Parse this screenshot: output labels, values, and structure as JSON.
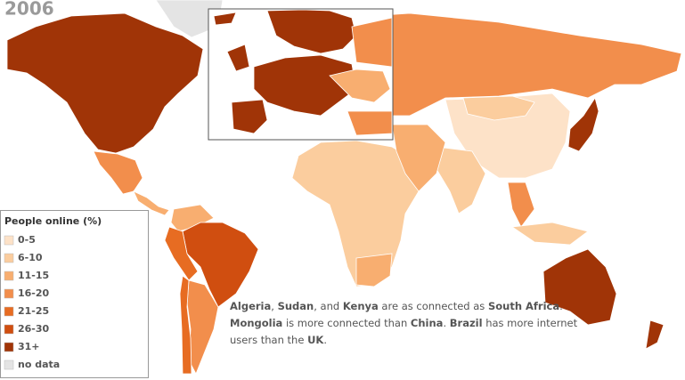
{
  "header": {
    "title": "2006"
  },
  "legend": {
    "title": "People online (%)",
    "items": [
      {
        "label": "0-5",
        "color": "#fde2c8"
      },
      {
        "label": "6-10",
        "color": "#fbcd9e"
      },
      {
        "label": "11-15",
        "color": "#f8ae70"
      },
      {
        "label": "16-20",
        "color": "#f28e4c"
      },
      {
        "label": "21-25",
        "color": "#e76c22"
      },
      {
        "label": "26-30",
        "color": "#d04e10"
      },
      {
        "label": "31+",
        "color": "#a03407"
      },
      {
        "label": "no data",
        "color": "#e4e4e4"
      }
    ]
  },
  "annotation": {
    "lines": [
      [
        {
          "text": "Algeria",
          "bold": true
        },
        {
          "text": ", ",
          "bold": false
        },
        {
          "text": "Sudan",
          "bold": true
        },
        {
          "text": ", and ",
          "bold": false
        },
        {
          "text": "Kenya",
          "bold": true
        },
        {
          "text": " are as connected as ",
          "bold": false
        },
        {
          "text": "South Africa",
          "bold": true
        },
        {
          "text": ".",
          "bold": false
        }
      ],
      [
        {
          "text": "Mongolia",
          "bold": true
        },
        {
          "text": " is more connected than ",
          "bold": false
        },
        {
          "text": "China",
          "bold": true
        },
        {
          "text": ". ",
          "bold": false
        },
        {
          "text": "Brazil",
          "bold": true
        },
        {
          "text": " has more internet",
          "bold": false
        }
      ],
      [
        {
          "text": "users than the ",
          "bold": false
        },
        {
          "text": "UK",
          "bold": true
        },
        {
          "text": ".",
          "bold": false
        }
      ]
    ]
  }
}
